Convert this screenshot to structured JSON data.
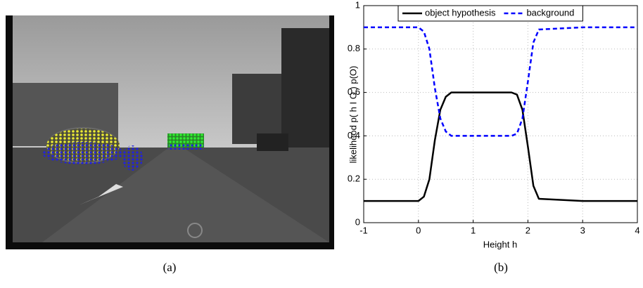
{
  "captions": [
    "(a)",
    "(b)"
  ],
  "chart_data": {
    "type": "line",
    "x_label": "Height h",
    "y_label": "likelihood p( h I O ) p(O)",
    "x": [
      -1,
      0,
      0.1,
      0.2,
      0.3,
      0.4,
      0.5,
      0.6,
      1,
      1.5,
      1.7,
      1.8,
      1.9,
      2.0,
      2.1,
      2.2,
      3,
      4
    ],
    "series": [
      {
        "name": "object hypothesis",
        "color": "#000000",
        "dash": false,
        "values": [
          0.1,
          0.1,
          0.12,
          0.2,
          0.38,
          0.52,
          0.58,
          0.6,
          0.6,
          0.6,
          0.6,
          0.59,
          0.52,
          0.35,
          0.17,
          0.11,
          0.1,
          0.1
        ]
      },
      {
        "name": "background",
        "color": "#0000ff",
        "dash": true,
        "values": [
          0.9,
          0.9,
          0.88,
          0.8,
          0.62,
          0.48,
          0.42,
          0.4,
          0.4,
          0.4,
          0.4,
          0.41,
          0.48,
          0.65,
          0.83,
          0.89,
          0.9,
          0.9
        ]
      }
    ],
    "xlim": [
      -1,
      4
    ],
    "xticks": [
      -1,
      0,
      1,
      2,
      3,
      4
    ],
    "ylim": [
      0,
      1
    ],
    "yticks": [
      0,
      0.2,
      0.4,
      0.6,
      0.8,
      1
    ],
    "grid": true,
    "legend": "top"
  }
}
